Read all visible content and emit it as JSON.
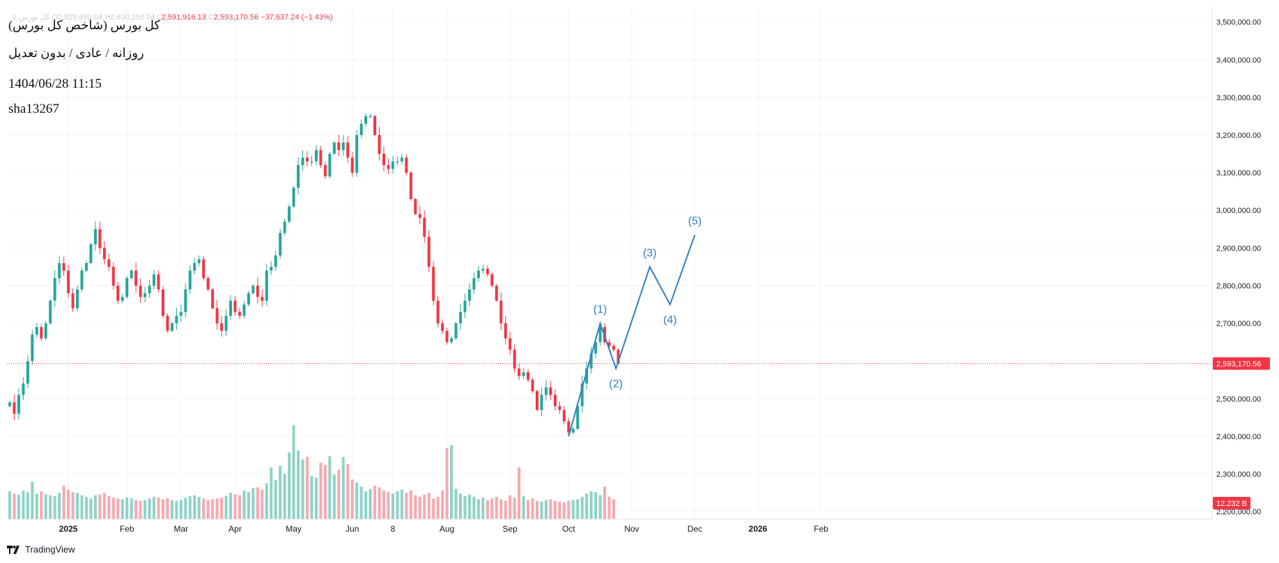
{
  "header": {
    "symbol": "کل بورس 1",
    "open_label": "O",
    "open_value": "2,629,650.04",
    "high_label": "H",
    "high_value": "2,630,250.04",
    "low_label": "L",
    "low_value": "2,591,916.13",
    "close_label": "C",
    "close_value": "2,593,170.56",
    "change": "−37,637.24 (−1.43%)"
  },
  "overlay": {
    "title": "کل بورس (شاخص کل بورس)",
    "subtitle": "روزانه / عادی / بدون تعدیل",
    "datetime": "1404/06/28 11:15",
    "author": "sha13267"
  },
  "footer": {
    "brand": "TradingView",
    "logo_icon": "tradingview-logo-icon"
  },
  "colors": {
    "up": "#26a69a",
    "down": "#f23645",
    "up_volume": "#8fd2c8",
    "down_volume": "#f7a9b0",
    "wave": "#2f7fc1",
    "grid": "#f0f3fa",
    "axis_text": "#131722"
  },
  "chart_data": {
    "type": "candlestick",
    "title": "کل بورس (شاخص کل بورس)",
    "y_axis": {
      "position": "right",
      "range": [
        2180000,
        3540000
      ],
      "ticks": [
        2200000,
        2300000,
        2400000,
        2500000,
        2600000,
        2700000,
        2800000,
        2900000,
        3000000,
        3100000,
        3200000,
        3300000,
        3400000,
        3500000
      ],
      "tick_labels": [
        "2,200,000.00",
        "2,300,000.00",
        "2,400,000.00",
        "2,500,000.00",
        "2,600,000.00",
        "2,700,000.00",
        "2,800,000.00",
        "2,900,000.00",
        "3,000,000.00",
        "3,100,000.00",
        "3,200,000.00",
        "3,300,000.00",
        "3,400,000.00",
        "3,500,000.00"
      ]
    },
    "x_axis": {
      "labels": [
        {
          "label": "2025",
          "bar": 13,
          "bold": true
        },
        {
          "label": "Feb",
          "bar": 26
        },
        {
          "label": "Mar",
          "bar": 38
        },
        {
          "label": "Apr",
          "bar": 50
        },
        {
          "label": "May",
          "bar": 63
        },
        {
          "label": "Jun",
          "bar": 76
        },
        {
          "label": "8",
          "bar": 85
        },
        {
          "label": "Aug",
          "bar": 97
        },
        {
          "label": "Sep",
          "bar": 111
        },
        {
          "label": "Oct",
          "bar": 124
        },
        {
          "label": "Nov",
          "bar": 138
        },
        {
          "label": "Dec",
          "bar": 152
        },
        {
          "label": "2026",
          "bar": 166,
          "bold": true
        },
        {
          "label": "Feb",
          "bar": 180
        }
      ]
    },
    "closes": [
      2490000,
      2460000,
      2510000,
      2540000,
      2600000,
      2670000,
      2690000,
      2660000,
      2700000,
      2760000,
      2820000,
      2860000,
      2840000,
      2780000,
      2740000,
      2790000,
      2840000,
      2860000,
      2910000,
      2950000,
      2900000,
      2870000,
      2850000,
      2800000,
      2760000,
      2770000,
      2820000,
      2840000,
      2800000,
      2770000,
      2780000,
      2800000,
      2830000,
      2790000,
      2720000,
      2680000,
      2700000,
      2720000,
      2730000,
      2790000,
      2840000,
      2860000,
      2870000,
      2820000,
      2790000,
      2740000,
      2700000,
      2680000,
      2720000,
      2760000,
      2730000,
      2720000,
      2750000,
      2780000,
      2800000,
      2770000,
      2760000,
      2840000,
      2850000,
      2880000,
      2940000,
      2970000,
      3010000,
      3060000,
      3120000,
      3140000,
      3130000,
      3130000,
      3160000,
      3120000,
      3090000,
      3150000,
      3180000,
      3160000,
      3180000,
      3140000,
      3100000,
      3200000,
      3230000,
      3250000,
      3250000,
      3200000,
      3150000,
      3120000,
      3110000,
      3130000,
      3130000,
      3140000,
      3100000,
      3030000,
      2990000,
      2980000,
      2930000,
      2850000,
      2760000,
      2700000,
      2680000,
      2650000,
      2660000,
      2700000,
      2730000,
      2760000,
      2790000,
      2820000,
      2840000,
      2845000,
      2830000,
      2800000,
      2760000,
      2700000,
      2660000,
      2630000,
      2580000,
      2560000,
      2570000,
      2550000,
      2520000,
      2470000,
      2510000,
      2530000,
      2510000,
      2480000,
      2470000,
      2440000,
      2410000,
      2420000,
      2480000,
      2540000,
      2580000,
      2620000,
      2650000,
      2690000,
      2650000,
      2640000,
      2630000,
      2593170
    ],
    "volumes": [
      3.5,
      3.2,
      3.1,
      3.6,
      3.4,
      4.7,
      3.2,
      3.5,
      3.1,
      3.0,
      2.9,
      3.3,
      4.2,
      3.7,
      3.4,
      3.3,
      3.0,
      2.8,
      2.6,
      3.0,
      3.1,
      3.3,
      2.9,
      2.7,
      2.6,
      2.5,
      2.7,
      2.6,
      2.4,
      2.3,
      2.4,
      2.6,
      2.8,
      2.7,
      2.5,
      2.6,
      2.4,
      2.3,
      2.4,
      2.7,
      2.9,
      3.0,
      2.8,
      2.6,
      2.4,
      2.5,
      2.6,
      2.7,
      2.9,
      3.3,
      3.1,
      3.0,
      3.6,
      3.4,
      3.9,
      4.0,
      3.7,
      4.5,
      6.5,
      4.9,
      6.7,
      5.7,
      8.4,
      11.8,
      8.6,
      7.5,
      7.8,
      5.4,
      5.2,
      7.1,
      6.8,
      7.9,
      5.6,
      6.2,
      7.8,
      6.9,
      5.0,
      4.6,
      4.1,
      3.5,
      3.8,
      4.2,
      4.0,
      3.6,
      3.4,
      3.2,
      3.5,
      3.7,
      3.3,
      3.6,
      3.0,
      2.8,
      3.1,
      3.3,
      2.6,
      2.8,
      3.6,
      8.9,
      9.3,
      3.8,
      3.2,
      2.9,
      3.1,
      2.8,
      2.5,
      2.7,
      2.4,
      2.6,
      2.8,
      2.5,
      2.3,
      3.0,
      2.7,
      6.5,
      2.9,
      2.4,
      2.6,
      2.3,
      2.2,
      2.4,
      2.5,
      2.3,
      2.2,
      2.1,
      2.3,
      2.4,
      2.5,
      2.8,
      3.2,
      3.5,
      3.4,
      3.0,
      4.1,
      2.8,
      2.5
    ],
    "volume_range": [
      0,
      18
    ],
    "current_price": {
      "value": 2593170.56,
      "label": "2,593,170.56"
    },
    "current_volume": {
      "label": "12.232 B"
    },
    "elliott_wave": {
      "points": [
        {
          "bar": 124,
          "value": 2400000,
          "label": ""
        },
        {
          "bar": 131,
          "value": 2700000,
          "label": "(1)"
        },
        {
          "bar": 134.5,
          "value": 2580000,
          "label": "(2)"
        },
        {
          "bar": 142,
          "value": 2850000,
          "label": "(3)"
        },
        {
          "bar": 146.5,
          "value": 2750000,
          "label": "(4)"
        },
        {
          "bar": 152,
          "value": 2935000,
          "label": "(5)"
        }
      ]
    }
  }
}
